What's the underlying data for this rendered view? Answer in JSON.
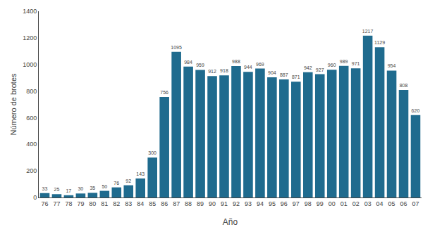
{
  "chart_data": {
    "type": "bar",
    "categories": [
      "76",
      "77",
      "78",
      "79",
      "80",
      "81",
      "82",
      "83",
      "84",
      "85",
      "86",
      "87",
      "88",
      "89",
      "90",
      "91",
      "92",
      "93",
      "94",
      "95",
      "96",
      "97",
      "98",
      "99",
      "00",
      "01",
      "02",
      "03",
      "04",
      "05",
      "06",
      "07"
    ],
    "values": [
      33,
      25,
      17,
      30,
      35,
      50,
      76,
      92,
      143,
      300,
      756,
      1095,
      984,
      959,
      912,
      918,
      988,
      944,
      969,
      904,
      887,
      871,
      942,
      927,
      960,
      989,
      971,
      1217,
      1129,
      954,
      808,
      620
    ],
    "color": "#1f6b8e",
    "xlabel": "Año",
    "ylabel": "Número de brotes",
    "ylim": [
      0,
      1400
    ],
    "yticks": [
      0,
      200,
      400,
      600,
      800,
      1000,
      1200,
      1400
    ],
    "grid": false,
    "data_labels": true
  }
}
